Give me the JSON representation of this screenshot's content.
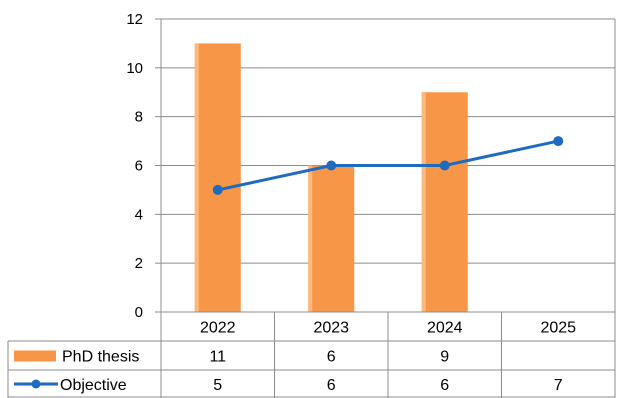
{
  "chart_data": {
    "type": "bar",
    "categories": [
      "2022",
      "2023",
      "2024",
      "2025"
    ],
    "ylim": [
      0,
      12
    ],
    "yticks": [
      0,
      2,
      4,
      6,
      8,
      10,
      12
    ],
    "grid": true,
    "series": [
      {
        "name": "PhD thesis",
        "kind": "bar",
        "color": "#f79646",
        "values": [
          11,
          6,
          9,
          null
        ]
      },
      {
        "name": "Objective",
        "kind": "line",
        "color": "#1f6bbf",
        "values": [
          5,
          6,
          6,
          7
        ]
      }
    ],
    "data_table": {
      "rows": [
        {
          "label": "PhD thesis",
          "cells": [
            "11",
            "6",
            "9",
            ""
          ]
        },
        {
          "label": "Objective",
          "cells": [
            "5",
            "6",
            "6",
            "7"
          ]
        }
      ]
    }
  }
}
